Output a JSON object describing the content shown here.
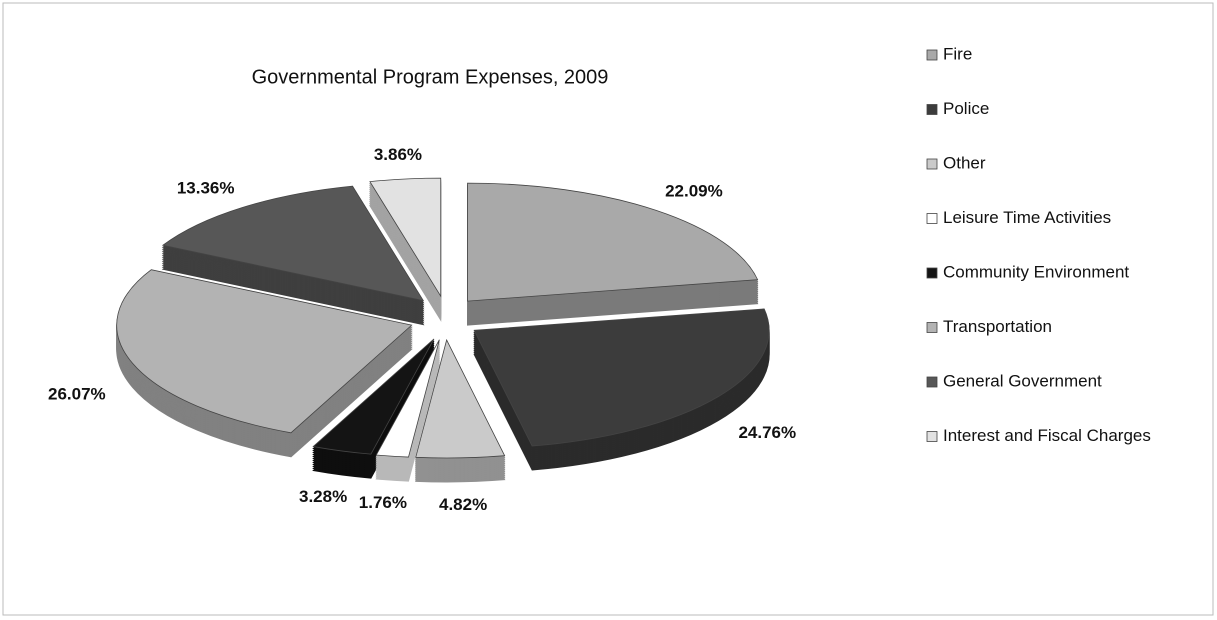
{
  "chart_data": {
    "type": "pie",
    "title": "Governmental Program Expenses, 2009",
    "categories": [
      "Fire",
      "Police",
      "Other",
      "Leisure Time Activities",
      "Community Environment",
      "Transportation",
      "General Government",
      "Interest and Fiscal Charges"
    ],
    "values": [
      22.09,
      24.76,
      4.82,
      1.76,
      3.28,
      26.07,
      13.36,
      3.86
    ],
    "value_labels": [
      "22.09%",
      "24.76%",
      "4.82%",
      "1.76%",
      "3.28%",
      "26.07%",
      "13.36%",
      "3.86%"
    ],
    "colors": [
      "#a9a9a9",
      "#3c3c3c",
      "#cacaca",
      "#ffffff",
      "#141414",
      "#b3b3b3",
      "#575757",
      "#e2e2e2"
    ],
    "legend": "right"
  }
}
